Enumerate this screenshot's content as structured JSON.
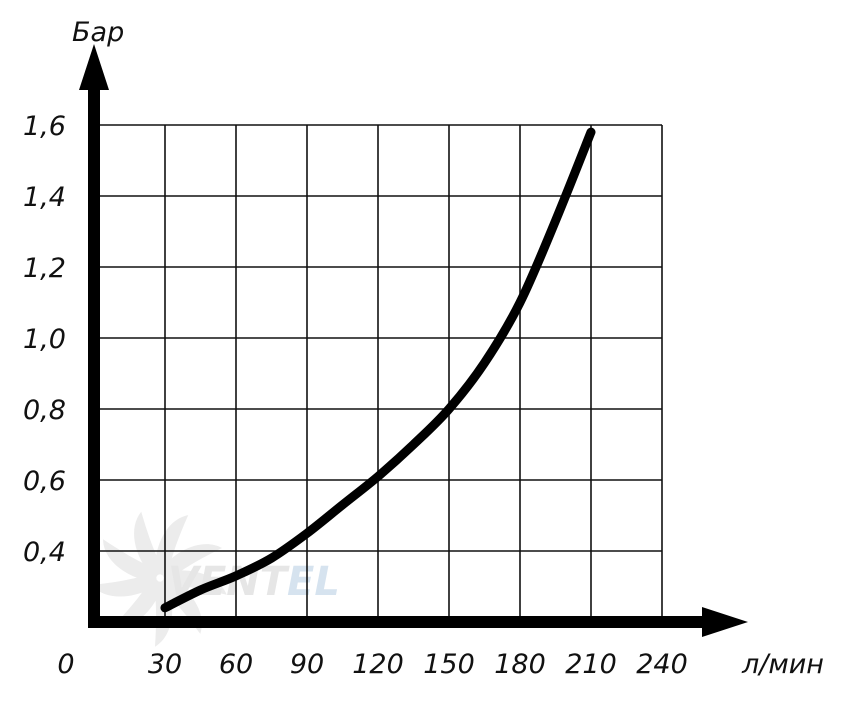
{
  "chart_data": {
    "type": "line",
    "ylabel": "Бар",
    "xlabel": "л/мин",
    "origin_label": "0",
    "x_ticks": [
      "30",
      "60",
      "90",
      "120",
      "150",
      "180",
      "210",
      "240"
    ],
    "y_ticks": [
      "0,4",
      "0,6",
      "0,8",
      "1,0",
      "1,2",
      "1,4",
      "1,6"
    ],
    "xlim": [
      0,
      240
    ],
    "ylim": [
      0.2,
      1.6
    ],
    "grid": true,
    "series": [
      {
        "x": [
          30,
          45,
          60,
          75,
          90,
          105,
          120,
          135,
          150,
          165,
          180,
          195,
          210
        ],
        "y": [
          0.24,
          0.29,
          0.33,
          0.38,
          0.45,
          0.53,
          0.61,
          0.7,
          0.8,
          0.93,
          1.1,
          1.33,
          1.58
        ]
      }
    ]
  },
  "watermark": {
    "text_main": "VENT",
    "text_accent": "EL",
    "color_main": "#e6e6e6",
    "color_accent": "#d6e3ef"
  },
  "colors": {
    "line": "#000000",
    "grid": "#111111",
    "background": "#ffffff"
  }
}
